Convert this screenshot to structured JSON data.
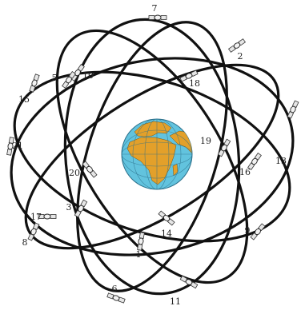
{
  "diagram": {
    "colors": {
      "orbit": "#111111",
      "ocean": "#62c3de",
      "land": "#e3a02a",
      "grid": "#2b6f8a",
      "label": "#222222"
    },
    "satellites": [
      {
        "label": "7"
      },
      {
        "label": "2"
      },
      {
        "label": "10"
      },
      {
        "label": "5"
      },
      {
        "label": "18"
      },
      {
        "label": "15"
      },
      {
        "label": "19"
      },
      {
        "label": "13"
      },
      {
        "label": "16"
      },
      {
        "label": "21"
      },
      {
        "label": "20"
      },
      {
        "label": "3"
      },
      {
        "label": "17"
      },
      {
        "label": "14"
      },
      {
        "label": "9"
      },
      {
        "label": "8"
      },
      {
        "label": "1"
      },
      {
        "label": "11"
      },
      {
        "label": "6"
      }
    ]
  }
}
